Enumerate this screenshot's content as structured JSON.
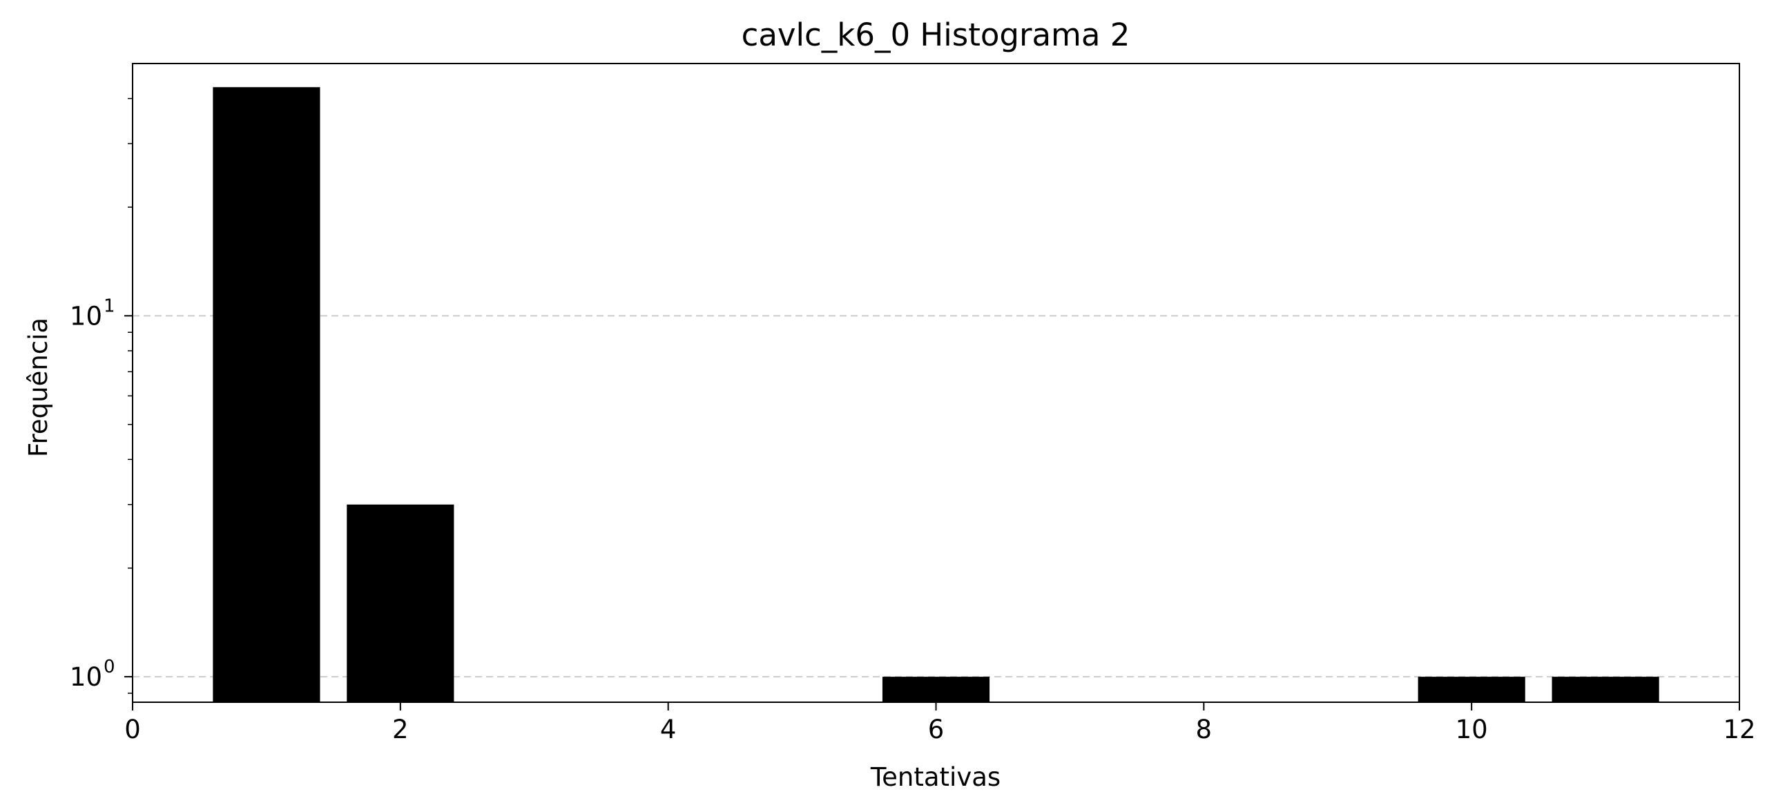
{
  "chart_data": {
    "type": "bar",
    "title": "cavlc_k6_0 Histograma 2",
    "xlabel": "Tentativas",
    "ylabel": "Frequência",
    "x": [
      1,
      2,
      6,
      10,
      11
    ],
    "values": [
      43,
      3,
      1,
      1,
      1
    ],
    "bar_width": 0.8,
    "bar_color": "#000000",
    "xlim": [
      0,
      12
    ],
    "ylim": [
      0.85,
      50
    ],
    "yscale": "log",
    "x_ticks": [
      0,
      2,
      4,
      6,
      8,
      10,
      12
    ],
    "y_ticks": [
      {
        "value": 1,
        "base": "10",
        "exp": "0"
      },
      {
        "value": 10,
        "base": "10",
        "exp": "1"
      }
    ],
    "grid": {
      "axis": "y",
      "style": "dashed",
      "color": "#cccccc"
    }
  }
}
